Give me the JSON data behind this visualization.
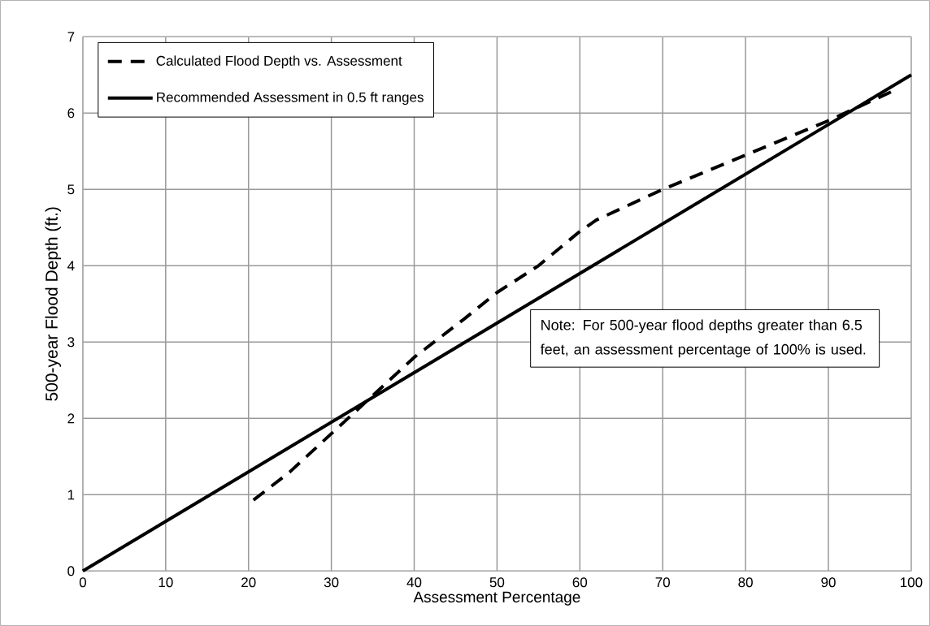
{
  "chart_data": {
    "type": "line",
    "xlabel": "Assessment Percentage",
    "ylabel": "500-year Flood Depth (ft.)",
    "xlim": [
      0,
      100
    ],
    "ylim": [
      0,
      7
    ],
    "xticks": [
      0,
      10,
      20,
      30,
      40,
      50,
      60,
      70,
      80,
      90,
      100
    ],
    "yticks": [
      0,
      1,
      2,
      3,
      4,
      5,
      6,
      7
    ],
    "grid": true,
    "legend": "top left",
    "marker": "none",
    "series": [
      {
        "name": "Calculated Flood Depth vs. Assessment",
        "color": "#000000",
        "line_style": "dashed",
        "x": [
          20.6,
          25,
          31,
          40,
          46,
          50,
          55,
          60,
          62,
          70,
          80,
          90,
          95,
          98
        ],
        "values": [
          0.93,
          1.3,
          1.9,
          2.8,
          3.3,
          3.65,
          4.0,
          4.45,
          4.6,
          5.0,
          5.45,
          5.9,
          6.15,
          6.3
        ]
      },
      {
        "name": "Recommended Assessment in 0.5 ft ranges",
        "color": "#000000",
        "line_style": "solid",
        "x": [
          0,
          100
        ],
        "values": [
          0,
          6.5
        ]
      }
    ],
    "annotations": [
      "Note: For 500-year flood depths greater than 6.5 feet, an assessment percentage of 100% is used."
    ]
  }
}
